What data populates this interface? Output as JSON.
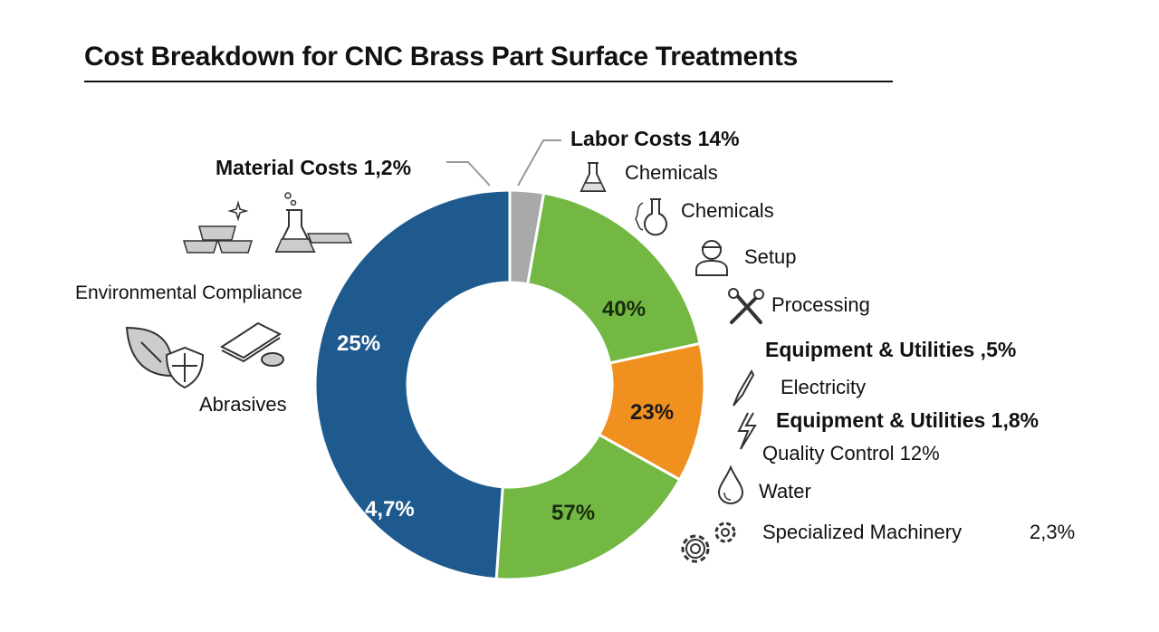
{
  "chart_data": {
    "type": "pie",
    "title": "Cost Breakdown for CNC Brass Part Surface Treatments",
    "donut": true,
    "segments": [
      {
        "color": "#a9a9a9",
        "share": 0.028,
        "labels": []
      },
      {
        "color": "#72b843",
        "share": 0.188,
        "labels": [
          "40%"
        ]
      },
      {
        "color": "#f0901e",
        "share": 0.115,
        "labels": [
          "23%"
        ]
      },
      {
        "color": "#72b843",
        "share": 0.18,
        "labels": [
          "57%"
        ]
      },
      {
        "color": "#1f5a8e",
        "share": 0.489,
        "labels": [
          "25%",
          "4,7%"
        ]
      }
    ],
    "annotations": {
      "material_costs": "Material Costs 1,2%",
      "labor_costs": "Labor Costs 14%",
      "chemicals_1": "Chemicals",
      "chemicals_2": "Chemicals",
      "setup": "Setup",
      "processing": "Processing",
      "equipment_utilities_1": "Equipment & Utilities ,5%",
      "electricity": "Electricity",
      "equipment_utilities_2": "Equipment & Utilities 1,8%",
      "quality_control": "Quality Control 12%",
      "water": "Water",
      "specialized_machinery": "Specialized Machinery",
      "specialized_machinery_value": "2,3%",
      "environmental_compliance": "Environmental Compliance",
      "abrasives": "Abrasives"
    },
    "icons": [
      "brass-bars-icon",
      "flask-icon",
      "leaf-icon",
      "shield-icon",
      "abrasive-pad-icon",
      "flask-small-icon",
      "flask-splash-icon",
      "worker-icon",
      "tools-icon",
      "soldering-pen-icon",
      "lightning-icon",
      "water-drop-icon",
      "gears-icon"
    ]
  }
}
